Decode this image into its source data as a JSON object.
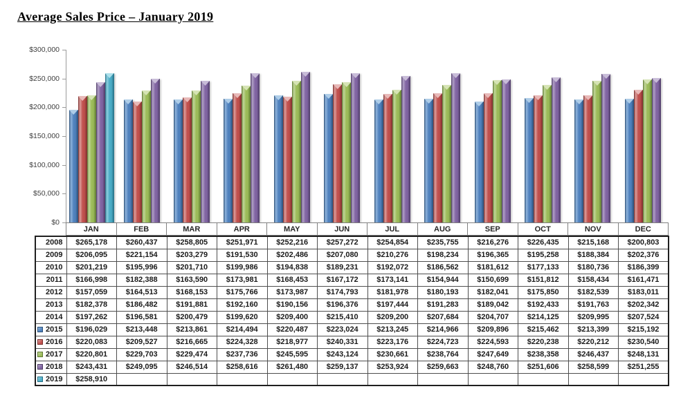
{
  "title": "Average Sales Price – January 2019",
  "chart_data": {
    "type": "bar",
    "title": "Average Sales Price – January 2019",
    "categories": [
      "JAN",
      "FEB",
      "MAR",
      "APR",
      "MAY",
      "JUN",
      "JUL",
      "AUG",
      "SEP",
      "OCT",
      "NOV",
      "DEC"
    ],
    "ylim": [
      0,
      300000
    ],
    "y_tick_step": 50000,
    "y_axis_labels": [
      "$300,000",
      "$250,000",
      "$200,000",
      "$150,000",
      "$100,000",
      "$50,000",
      "$0"
    ],
    "grid": false,
    "legend_position": "table-row-headers",
    "series": [
      {
        "name": "2015",
        "color": "#4F81BD",
        "values": [
          196029,
          213448,
          213861,
          214494,
          220487,
          223024,
          213245,
          214966,
          209896,
          215462,
          213399,
          215192
        ]
      },
      {
        "name": "2016",
        "color": "#C0504D",
        "values": [
          220083,
          209527,
          216665,
          224328,
          218977,
          240331,
          223176,
          224723,
          224593,
          220238,
          220212,
          230540
        ]
      },
      {
        "name": "2017",
        "color": "#9BBB59",
        "values": [
          220801,
          229703,
          229474,
          237736,
          245595,
          243124,
          230661,
          238764,
          247649,
          238358,
          246437,
          248131
        ]
      },
      {
        "name": "2018",
        "color": "#8064A2",
        "values": [
          243431,
          249095,
          246514,
          258616,
          261480,
          259137,
          253924,
          259663,
          248760,
          251606,
          258599,
          251255
        ]
      },
      {
        "name": "2019",
        "color": "#4BACC6",
        "values": [
          258910,
          null,
          null,
          null,
          null,
          null,
          null,
          null,
          null,
          null,
          null,
          null
        ]
      }
    ]
  },
  "colors": {
    "series_styles": {
      "2015": {
        "mid": "#4f81bd",
        "light": "#8fb4dc",
        "edge": "#2d5178",
        "cap": "#aecde8"
      },
      "2016": {
        "mid": "#c0504d",
        "light": "#dc9e9c",
        "edge": "#7c302e",
        "cap": "#e8b9b8"
      },
      "2017": {
        "mid": "#9bbb59",
        "light": "#c2d69a",
        "edge": "#5f7a33",
        "cap": "#d6e4b5"
      },
      "2018": {
        "mid": "#8064a2",
        "light": "#b2a1c7",
        "edge": "#4e3c66",
        "cap": "#c8bcd8"
      },
      "2019": {
        "mid": "#4bacc6",
        "light": "#8ed0e0",
        "edge": "#266e83",
        "cap": "#ace0eb"
      }
    },
    "axis_line": "#9a9a9a",
    "table_border": "#4d4d4d"
  },
  "table": {
    "rows": [
      {
        "year": "2008",
        "legend": null,
        "values": [
          "$265,178",
          "$260,437",
          "$258,805",
          "$251,971",
          "$252,216",
          "$257,272",
          "$254,854",
          "$235,755",
          "$216,276",
          "$226,435",
          "$215,168",
          "$200,803"
        ]
      },
      {
        "year": "2009",
        "legend": null,
        "values": [
          "$206,095",
          "$221,154",
          "$203,279",
          "$191,530",
          "$202,486",
          "$207,080",
          "$210,276",
          "$198,234",
          "$196,365",
          "$195,258",
          "$188,384",
          "$202,376"
        ]
      },
      {
        "year": "2010",
        "legend": null,
        "values": [
          "$201,219",
          "$195,996",
          "$201,710",
          "$199,986",
          "$194,838",
          "$189,231",
          "$192,072",
          "$186,562",
          "$181,612",
          "$177,133",
          "$180,736",
          "$186,399"
        ]
      },
      {
        "year": "2011",
        "legend": null,
        "values": [
          "$166,998",
          "$182,388",
          "$163,590",
          "$173,981",
          "$168,453",
          "$167,172",
          "$173,141",
          "$154,944",
          "$150,699",
          "$151,812",
          "$158,434",
          "$161,471"
        ]
      },
      {
        "year": "2012",
        "legend": null,
        "values": [
          "$157,059",
          "$164,513",
          "$168,153",
          "$175,766",
          "$173,987",
          "$174,793",
          "$181,978",
          "$180,193",
          "$182,041",
          "$175,850",
          "$182,539",
          "$183,011"
        ]
      },
      {
        "year": "2013",
        "legend": null,
        "values": [
          "$182,378",
          "$186,482",
          "$191,881",
          "$192,160",
          "$190,156",
          "$196,376",
          "$197,444",
          "$191,283",
          "$189,042",
          "$192,433",
          "$191,763",
          "$202,342"
        ]
      },
      {
        "year": "2014",
        "legend": null,
        "values": [
          "$197,262",
          "$196,581",
          "$200,479",
          "$199,620",
          "$209,400",
          "$215,410",
          "$209,200",
          "$207,684",
          "$204,707",
          "$214,125",
          "$209,995",
          "$207,524"
        ]
      },
      {
        "year": "2015",
        "legend": "2015",
        "values": [
          "$196,029",
          "$213,448",
          "$213,861",
          "$214,494",
          "$220,487",
          "$223,024",
          "$213,245",
          "$214,966",
          "$209,896",
          "$215,462",
          "$213,399",
          "$215,192"
        ]
      },
      {
        "year": "2016",
        "legend": "2016",
        "values": [
          "$220,083",
          "$209,527",
          "$216,665",
          "$224,328",
          "$218,977",
          "$240,331",
          "$223,176",
          "$224,723",
          "$224,593",
          "$220,238",
          "$220,212",
          "$230,540"
        ]
      },
      {
        "year": "2017",
        "legend": "2017",
        "values": [
          "$220,801",
          "$229,703",
          "$229,474",
          "$237,736",
          "$245,595",
          "$243,124",
          "$230,661",
          "$238,764",
          "$247,649",
          "$238,358",
          "$246,437",
          "$248,131"
        ]
      },
      {
        "year": "2018",
        "legend": "2018",
        "values": [
          "$243,431",
          "$249,095",
          "$246,514",
          "$258,616",
          "$261,480",
          "$259,137",
          "$253,924",
          "$259,663",
          "$248,760",
          "$251,606",
          "$258,599",
          "$251,255"
        ]
      },
      {
        "year": "2019",
        "legend": "2019",
        "values": [
          "$258,910",
          "",
          "",
          "",
          "",
          "",
          "",
          "",
          "",
          "",
          "",
          ""
        ]
      }
    ]
  }
}
